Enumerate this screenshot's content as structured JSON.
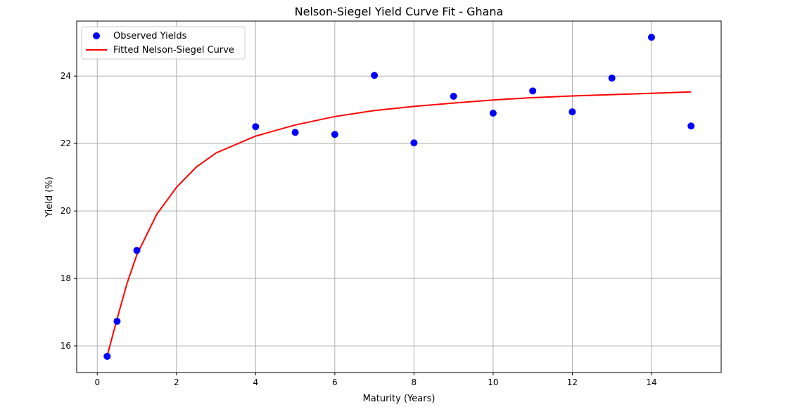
{
  "chart_data": {
    "type": "scatter",
    "title": "Nelson-Siegel Yield Curve Fit - Ghana",
    "xlabel": "Maturity (Years)",
    "ylabel": "Yield (%)",
    "xlim": [
      -0.52,
      15.76
    ],
    "ylim": [
      15.21,
      25.63
    ],
    "xticks": [
      0,
      2,
      4,
      6,
      8,
      10,
      12,
      14
    ],
    "yticks": [
      16,
      18,
      20,
      22,
      24
    ],
    "grid": true,
    "legend_position": "top-left",
    "legend": [
      "Observed Yields",
      "Fitted Nelson-Siegel Curve"
    ],
    "series": [
      {
        "name": "Observed Yields",
        "kind": "scatter",
        "color": "#0000ff",
        "x": [
          0.25,
          0.5,
          1,
          4,
          5,
          6,
          7,
          8,
          9,
          10,
          11,
          12,
          13,
          14,
          15
        ],
        "y": [
          15.69,
          16.73,
          18.83,
          22.5,
          22.33,
          22.27,
          24.02,
          22.02,
          23.4,
          22.9,
          23.56,
          22.94,
          23.94,
          25.15,
          22.52
        ]
      },
      {
        "name": "Fitted Nelson-Siegel Curve",
        "kind": "line",
        "color": "#ff0000",
        "x": [
          0.25,
          0.5,
          0.75,
          1,
          1.5,
          2,
          2.5,
          3,
          4,
          5,
          6,
          7,
          8,
          9,
          10,
          11,
          12,
          13,
          14,
          15
        ],
        "y": [
          15.7,
          16.8,
          17.85,
          18.7,
          19.9,
          20.7,
          21.3,
          21.72,
          22.22,
          22.55,
          22.8,
          22.98,
          23.1,
          23.2,
          23.29,
          23.36,
          23.41,
          23.45,
          23.49,
          23.53
        ]
      }
    ]
  }
}
